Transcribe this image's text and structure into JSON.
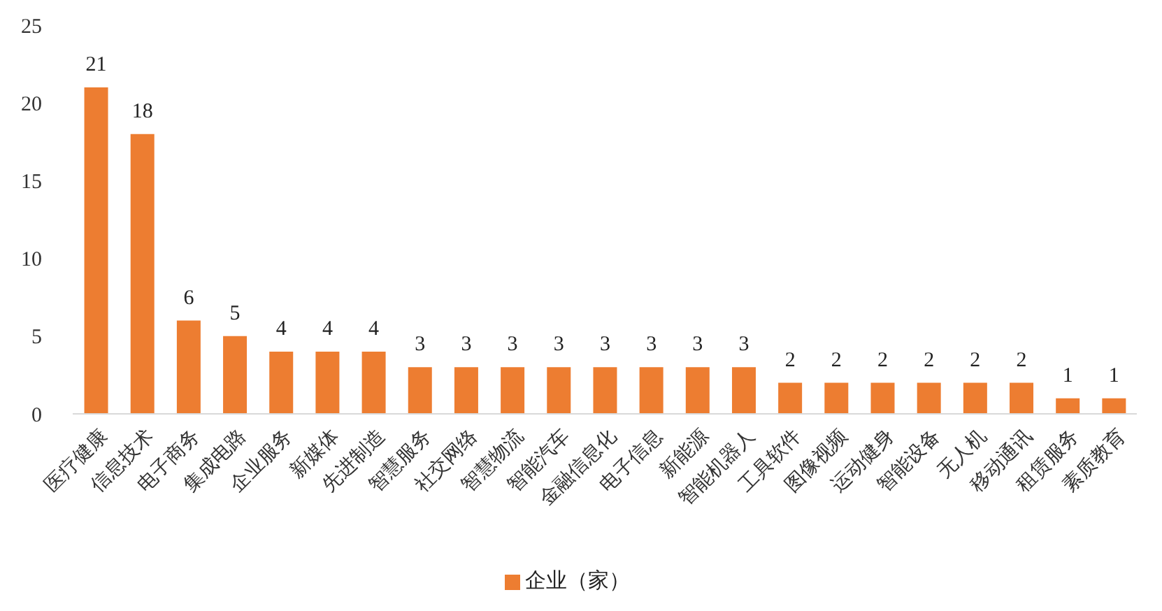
{
  "chart_data": {
    "type": "bar",
    "categories": [
      "医疗健康",
      "信息技术",
      "电子商务",
      "集成电路",
      "企业服务",
      "新媒体",
      "先进制造",
      "智慧服务",
      "社交网络",
      "智慧物流",
      "智能汽车",
      "金融信息化",
      "电子信息",
      "新能源",
      "智能机器人",
      "工具软件",
      "图像视频",
      "运动健身",
      "智能设备",
      "无人机",
      "移动通讯",
      "租赁服务",
      "素质教育"
    ],
    "series": [
      {
        "name": "企业（家）",
        "color": "#ed7d31",
        "values": [
          21,
          18,
          6,
          5,
          4,
          4,
          4,
          3,
          3,
          3,
          3,
          3,
          3,
          3,
          3,
          2,
          2,
          2,
          2,
          2,
          2,
          1,
          1
        ]
      }
    ],
    "ylim": [
      0,
      25
    ],
    "yticks": [
      0,
      5,
      10,
      15,
      20,
      25
    ],
    "data_labels": true,
    "legend": "bottom"
  }
}
